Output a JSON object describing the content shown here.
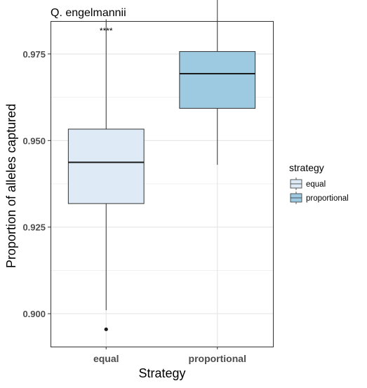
{
  "chart_data": {
    "type": "box",
    "title": "Q. engelmannii",
    "xlabel": "Strategy",
    "ylabel": "Proportion of alleles captured",
    "categories": [
      "equal",
      "proportional"
    ],
    "ylim": [
      0.8905,
      0.9845
    ],
    "yticks": [
      0.9,
      0.925,
      0.95,
      0.975
    ],
    "ytick_labels": [
      "0.900",
      "0.925",
      "0.950",
      "0.975"
    ],
    "grid": true,
    "legend": {
      "title": "strategy",
      "position": "right",
      "entries": [
        "equal",
        "proportional"
      ]
    },
    "series": [
      {
        "name": "equal",
        "whisker_low": 0.901,
        "q1": 0.9318,
        "median": 0.9437,
        "q3": 0.9533,
        "whisker_high": 0.985,
        "outliers": [
          0.8955
        ],
        "color": "#deebf7"
      },
      {
        "name": "proportional",
        "whisker_low": 0.943,
        "q1": 0.9593,
        "median": 0.9693,
        "q3": 0.9757,
        "whisker_high": 0.9945,
        "outliers": [],
        "color": "#9ecae1"
      }
    ],
    "annotations": [
      {
        "text": "****",
        "category": "equal",
        "y": 0.9951
      }
    ]
  }
}
